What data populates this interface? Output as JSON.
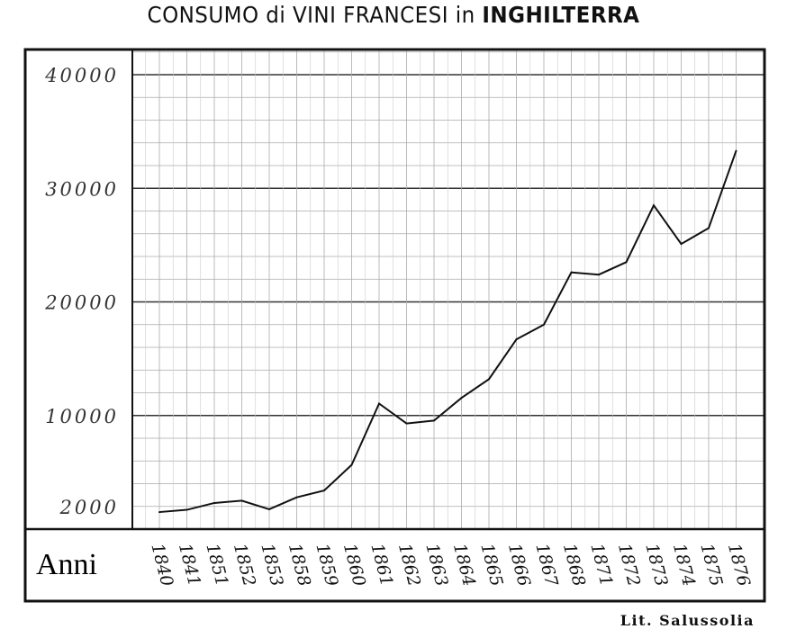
{
  "chart_data": {
    "type": "line",
    "title_parts": [
      "CONSUMO di VINI FRANCESI in ",
      "INGHILTERRA"
    ],
    "xlabel": "Anni",
    "ylabel": "",
    "categories": [
      "1840",
      "1841",
      "1851",
      "1852",
      "1853",
      "1858",
      "1859",
      "1860",
      "1861",
      "1862",
      "1863",
      "1864",
      "1865",
      "1866",
      "1867",
      "1868",
      "1871",
      "1872",
      "1873",
      "1874",
      "1875",
      "1876"
    ],
    "values": [
      1500,
      1700,
      2300,
      2500,
      1750,
      2800,
      3400,
      5650,
      11050,
      9300,
      9550,
      11550,
      13200,
      16700,
      18000,
      22600,
      22400,
      23500,
      28500,
      25100,
      26500,
      33300
    ],
    "yticks": [
      2000,
      10000,
      20000,
      30000,
      40000
    ],
    "ytick_labels": [
      "2000",
      "10000",
      "20000",
      "30000",
      "40000"
    ],
    "ylim": [
      0,
      42000
    ],
    "grid": true,
    "minor_grid_step": 2000,
    "line_color": "#111111",
    "credit": "Lit. Salussolia"
  }
}
